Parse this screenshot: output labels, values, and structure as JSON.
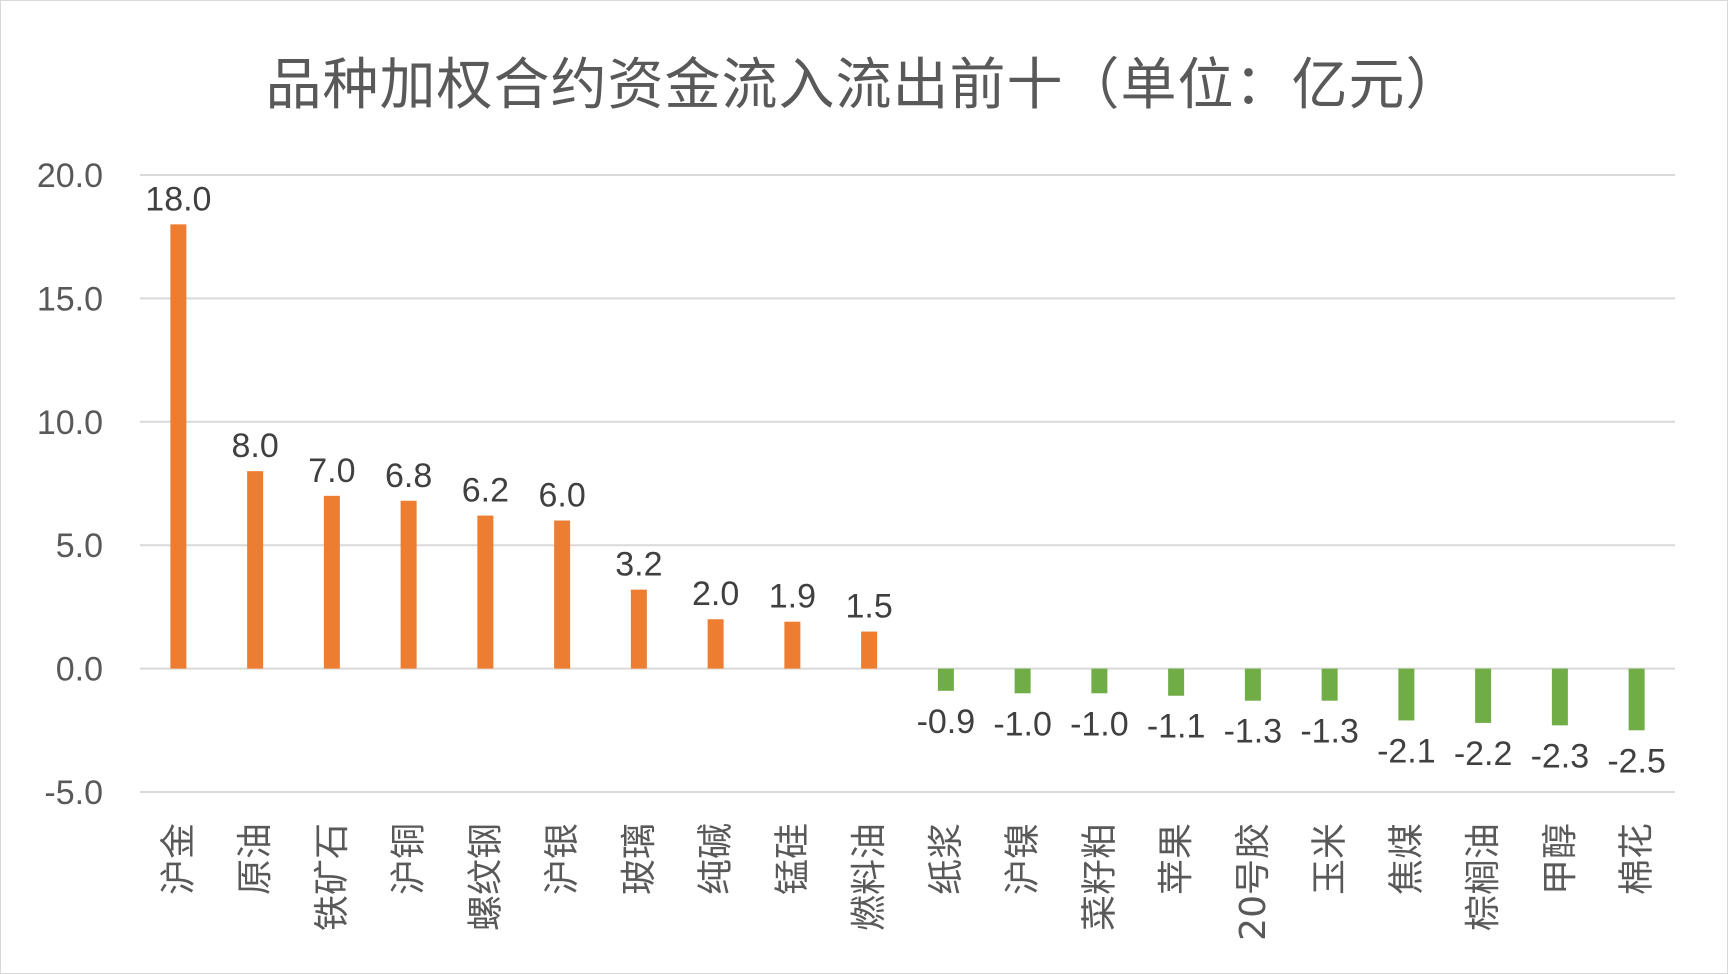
{
  "chart_data": {
    "type": "bar",
    "title": "品种加权合约资金流入流出前十（单位：亿元）",
    "xlabel": "",
    "ylabel": "",
    "ylim": [
      -5,
      20
    ],
    "yticks": [
      20,
      15,
      10,
      5,
      0,
      -5
    ],
    "ytick_labels": [
      "20.0",
      "15.0",
      "10.0",
      "5.0",
      "0.0",
      "-5.0"
    ],
    "grid": true,
    "colors": {
      "positive": "#ED7D31",
      "negative": "#70AD47",
      "grid": "#d9d9d9"
    },
    "categories": [
      "沪金",
      "原油",
      "铁矿石",
      "沪铜",
      "螺纹钢",
      "沪银",
      "玻璃",
      "纯碱",
      "锰硅",
      "燃料油",
      "纸浆",
      "沪镍",
      "菜籽粕",
      "苹果",
      "20号胶",
      "玉米",
      "焦煤",
      "棕榈油",
      "甲醇",
      "棉花"
    ],
    "values": [
      18.0,
      8.0,
      7.0,
      6.8,
      6.2,
      6.0,
      3.2,
      2.0,
      1.9,
      1.5,
      -0.9,
      -1.0,
      -1.0,
      -1.1,
      -1.3,
      -1.3,
      -2.1,
      -2.2,
      -2.3,
      -2.5
    ],
    "value_labels": [
      "18.0",
      "8.0",
      "7.0",
      "6.8",
      "6.2",
      "6.0",
      "3.2",
      "2.0",
      "1.9",
      "1.5",
      "-0.9",
      "-1.0",
      "-1.0",
      "-1.1",
      "-1.3",
      "-1.3",
      "-2.1",
      "-2.2",
      "-2.3",
      "-2.5"
    ]
  }
}
